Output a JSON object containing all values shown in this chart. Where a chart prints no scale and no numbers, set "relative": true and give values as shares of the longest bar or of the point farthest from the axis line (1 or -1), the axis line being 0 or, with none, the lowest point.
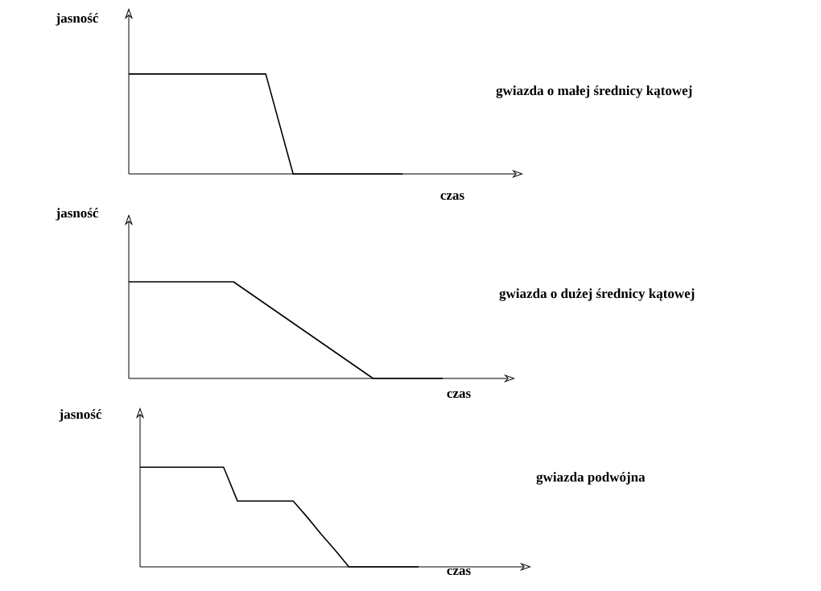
{
  "chart_data": [
    {
      "type": "line",
      "annotations": [
        "gwiazda o małej średnicy kątowej"
      ],
      "xlabel": "czas",
      "ylabel": "jasność",
      "relative": true,
      "color": "#000000",
      "categories": [
        null,
        null,
        null,
        null,
        null,
        null,
        null,
        null,
        null,
        null,
        null
      ],
      "values": [
        1,
        1,
        1,
        1,
        1,
        1,
        0,
        0,
        0,
        0,
        0
      ]
    },
    {
      "type": "line",
      "annotations": [
        "gwiazda o dużej średnicy kątowej"
      ],
      "xlabel": "czas",
      "ylabel": "jasność",
      "relative": true,
      "color": "#000000",
      "categories": [
        null,
        null,
        null,
        null,
        null,
        null,
        null,
        null,
        null,
        null
      ],
      "values": [
        1,
        1,
        1,
        1,
        0.75,
        0.5,
        0.25,
        0,
        0,
        0
      ]
    },
    {
      "type": "line",
      "annotations": [
        "gwiazda podwójna"
      ],
      "xlabel": "czas",
      "ylabel": "jasność",
      "relative": true,
      "color": "#000000",
      "categories": [
        null,
        null,
        null,
        null,
        null,
        null,
        null,
        null,
        null,
        null,
        null,
        null,
        null,
        null,
        null,
        null,
        null,
        null,
        null,
        null,
        null
      ],
      "values": [
        1,
        1,
        1,
        1,
        1,
        1,
        1,
        0.66,
        0.66,
        0.66,
        0.66,
        0.66,
        0.5,
        0.33,
        0.17,
        0,
        0,
        0,
        0,
        0,
        0
      ]
    }
  ]
}
